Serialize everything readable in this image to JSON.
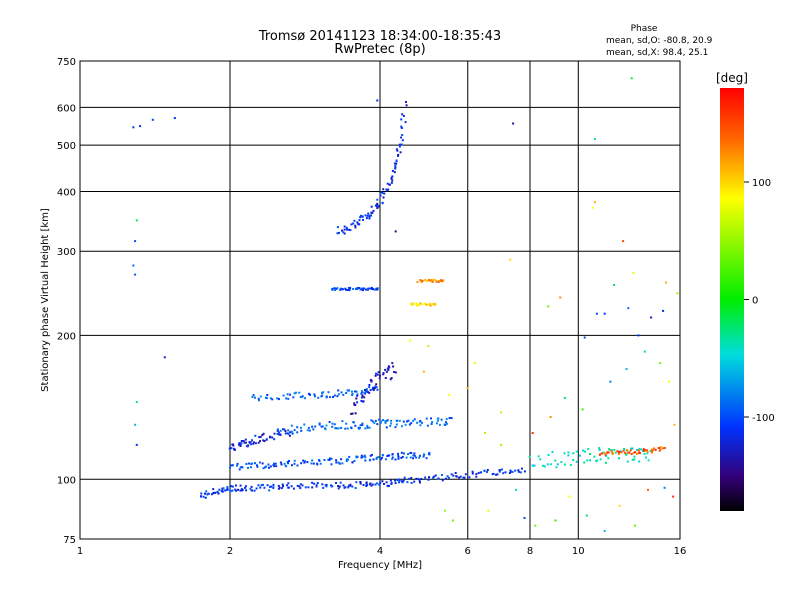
{
  "chart_data": {
    "type": "scatter",
    "title": "Tromsø 20141123 18:34:00-18:35:43",
    "subtitle": "RwPretec (8p)",
    "xlabel": "Frequency [MHz]",
    "ylabel": "Stationary phase Virtual Height [km]",
    "x_scale": "log",
    "y_scale": "log",
    "xlim": [
      1,
      16
    ],
    "ylim": [
      75,
      750
    ],
    "x_ticks": [
      1,
      2,
      4,
      6,
      8,
      10,
      16
    ],
    "y_ticks": [
      75,
      100,
      200,
      300,
      400,
      500,
      600,
      750
    ],
    "grid": true,
    "stats": {
      "heading": "Phase",
      "o_line": "mean, sd,O: -80.8, 20.9",
      "x_line": "mean, sd,X:  98.4, 25.1"
    },
    "colorbar": {
      "label": "[deg]",
      "range": [
        -180,
        180
      ],
      "ticks": [
        100,
        0,
        -100
      ],
      "tick_labels": [
        "100",
        "0",
        "-100"
      ]
    },
    "traces": [
      {
        "x": [
          1.75,
          1.85,
          1.95,
          2.05,
          2.2,
          2.4,
          2.6,
          2.9,
          3.2,
          3.5,
          3.8,
          4.1,
          4.4,
          4.8,
          5.3,
          5.9,
          6.5,
          7.2,
          7.8
        ],
        "y": [
          92,
          94,
          95,
          96,
          96,
          96,
          97,
          97,
          97,
          97,
          98,
          98,
          99,
          100,
          101,
          102,
          103,
          104,
          105
        ],
        "phase": -110,
        "jitter": 0.015
      },
      {
        "x": [
          2.0,
          2.2,
          2.4,
          2.6,
          2.9,
          3.2,
          3.5,
          3.8,
          4.1,
          4.4,
          4.7,
          5.1
        ],
        "y": [
          106,
          107,
          107,
          108,
          108,
          109,
          110,
          111,
          111,
          112,
          112,
          112
        ],
        "phase": -100,
        "jitter": 0.015
      },
      {
        "x": [
          2.0,
          2.1,
          2.2,
          2.3,
          2.5,
          2.7
        ],
        "y": [
          116,
          118,
          120,
          122,
          124,
          126
        ],
        "phase": -120,
        "jitter": 0.02
      },
      {
        "x": [
          2.5,
          2.8,
          3.1,
          3.4,
          3.7,
          4.0,
          4.3,
          4.7,
          5.2,
          5.6
        ],
        "y": [
          126,
          128,
          129,
          130,
          130,
          131,
          131,
          132,
          132,
          132
        ],
        "phase": -90,
        "jitter": 0.02
      },
      {
        "x": [
          2.2,
          2.5,
          2.8,
          3.1,
          3.4,
          3.7,
          4.0
        ],
        "y": [
          148,
          149,
          150,
          150,
          152,
          153,
          155
        ],
        "phase": -95,
        "jitter": 0.015
      },
      {
        "x": [
          3.3,
          3.5,
          3.7,
          3.85,
          4.0,
          4.15,
          4.3,
          4.4,
          4.5
        ],
        "y": [
          330,
          340,
          350,
          360,
          380,
          410,
          450,
          500,
          620
        ],
        "phase": -115,
        "jitter": 0.02
      },
      {
        "x": [
          3.2,
          3.4,
          3.6,
          3.8,
          4.0
        ],
        "y": [
          250,
          250,
          250,
          250,
          250
        ],
        "phase": -105,
        "jitter": 0.006
      },
      {
        "x": [
          4.6,
          4.9,
          5.2
        ],
        "y": [
          232,
          232,
          232
        ],
        "phase": 110,
        "jitter": 0.006
      },
      {
        "x": [
          4.8,
          5.1,
          5.4
        ],
        "y": [
          260,
          260,
          260
        ],
        "phase": 130,
        "jitter": 0.006
      },
      {
        "x": [
          3.5,
          3.7,
          3.9,
          4.1,
          4.3
        ],
        "y": [
          140,
          150,
          160,
          165,
          170
        ],
        "phase": -130,
        "jitter": 0.04
      },
      {
        "x": [
          8.0,
          9.0,
          10.0,
          11.0,
          12.0,
          13.0,
          14.0
        ],
        "y": [
          110,
          110,
          111,
          112,
          112,
          113,
          113
        ],
        "phase": -40,
        "jitter": 0.04
      },
      {
        "x": [
          11.0,
          12.0,
          13.0,
          14.0,
          15.0
        ],
        "y": [
          113,
          114,
          114,
          115,
          116
        ],
        "phase": 150,
        "jitter": 0.01
      }
    ],
    "points": [
      {
        "x": 1.28,
        "y": 545,
        "phase": -110
      },
      {
        "x": 1.32,
        "y": 548,
        "phase": -115
      },
      {
        "x": 1.4,
        "y": 565,
        "phase": -105
      },
      {
        "x": 1.55,
        "y": 570,
        "phase": -112
      },
      {
        "x": 1.29,
        "y": 315,
        "phase": -100
      },
      {
        "x": 1.3,
        "y": 348,
        "phase": -20
      },
      {
        "x": 1.28,
        "y": 280,
        "phase": -90
      },
      {
        "x": 1.29,
        "y": 268,
        "phase": -95
      },
      {
        "x": 1.3,
        "y": 145,
        "phase": -30
      },
      {
        "x": 1.29,
        "y": 130,
        "phase": -60
      },
      {
        "x": 1.3,
        "y": 118,
        "phase": -110
      },
      {
        "x": 1.48,
        "y": 180,
        "phase": -120
      },
      {
        "x": 3.95,
        "y": 620,
        "phase": -115
      },
      {
        "x": 7.4,
        "y": 555,
        "phase": -140
      },
      {
        "x": 10.8,
        "y": 515,
        "phase": -30
      },
      {
        "x": 12.8,
        "y": 690,
        "phase": -20
      },
      {
        "x": 10.7,
        "y": 370,
        "phase": 100
      },
      {
        "x": 10.8,
        "y": 380,
        "phase": 120
      },
      {
        "x": 12.3,
        "y": 315,
        "phase": 150
      },
      {
        "x": 7.3,
        "y": 288,
        "phase": 110
      },
      {
        "x": 10.9,
        "y": 222,
        "phase": -100
      },
      {
        "x": 11.3,
        "y": 222,
        "phase": -110
      },
      {
        "x": 12.6,
        "y": 228,
        "phase": -90
      },
      {
        "x": 14.0,
        "y": 218,
        "phase": -130
      },
      {
        "x": 14.8,
        "y": 225,
        "phase": -120
      },
      {
        "x": 9.2,
        "y": 240,
        "phase": 130
      },
      {
        "x": 8.7,
        "y": 230,
        "phase": 40
      },
      {
        "x": 6.2,
        "y": 175,
        "phase": 90
      },
      {
        "x": 6.0,
        "y": 155,
        "phase": 120
      },
      {
        "x": 5.5,
        "y": 150,
        "phase": 100
      },
      {
        "x": 6.5,
        "y": 125,
        "phase": 70
      },
      {
        "x": 7.0,
        "y": 118,
        "phase": 60
      },
      {
        "x": 7.5,
        "y": 95,
        "phase": -40
      },
      {
        "x": 7.8,
        "y": 83,
        "phase": -100
      },
      {
        "x": 8.2,
        "y": 80,
        "phase": 40
      },
      {
        "x": 9.0,
        "y": 82,
        "phase": 20
      },
      {
        "x": 9.6,
        "y": 92,
        "phase": 100
      },
      {
        "x": 10.4,
        "y": 84,
        "phase": -20
      },
      {
        "x": 11.3,
        "y": 78,
        "phase": -60
      },
      {
        "x": 12.1,
        "y": 88,
        "phase": 110
      },
      {
        "x": 13.0,
        "y": 80,
        "phase": 40
      },
      {
        "x": 13.8,
        "y": 95,
        "phase": 140
      },
      {
        "x": 14.9,
        "y": 96,
        "phase": -80
      },
      {
        "x": 15.5,
        "y": 92,
        "phase": 160
      },
      {
        "x": 5.6,
        "y": 82,
        "phase": 40
      },
      {
        "x": 5.4,
        "y": 86,
        "phase": 60
      },
      {
        "x": 6.6,
        "y": 86,
        "phase": 90
      },
      {
        "x": 8.8,
        "y": 135,
        "phase": 130
      },
      {
        "x": 9.4,
        "y": 148,
        "phase": -20
      },
      {
        "x": 10.2,
        "y": 140,
        "phase": 20
      },
      {
        "x": 11.6,
        "y": 160,
        "phase": -80
      },
      {
        "x": 12.5,
        "y": 170,
        "phase": -60
      },
      {
        "x": 13.6,
        "y": 185,
        "phase": -20
      },
      {
        "x": 14.6,
        "y": 175,
        "phase": 40
      },
      {
        "x": 15.2,
        "y": 160,
        "phase": 100
      },
      {
        "x": 15.6,
        "y": 130,
        "phase": 120
      },
      {
        "x": 15.8,
        "y": 245,
        "phase": 60
      },
      {
        "x": 15.0,
        "y": 258,
        "phase": 120
      },
      {
        "x": 12.9,
        "y": 270,
        "phase": 90
      },
      {
        "x": 11.8,
        "y": 255,
        "phase": -20
      },
      {
        "x": 13.2,
        "y": 200,
        "phase": -110
      },
      {
        "x": 10.3,
        "y": 198,
        "phase": -100
      },
      {
        "x": 8.1,
        "y": 125,
        "phase": 160
      },
      {
        "x": 7.0,
        "y": 138,
        "phase": 70
      },
      {
        "x": 4.3,
        "y": 330,
        "phase": -140
      },
      {
        "x": 5.0,
        "y": 190,
        "phase": 70
      },
      {
        "x": 4.9,
        "y": 168,
        "phase": 120
      },
      {
        "x": 4.6,
        "y": 195,
        "phase": 100
      }
    ]
  }
}
